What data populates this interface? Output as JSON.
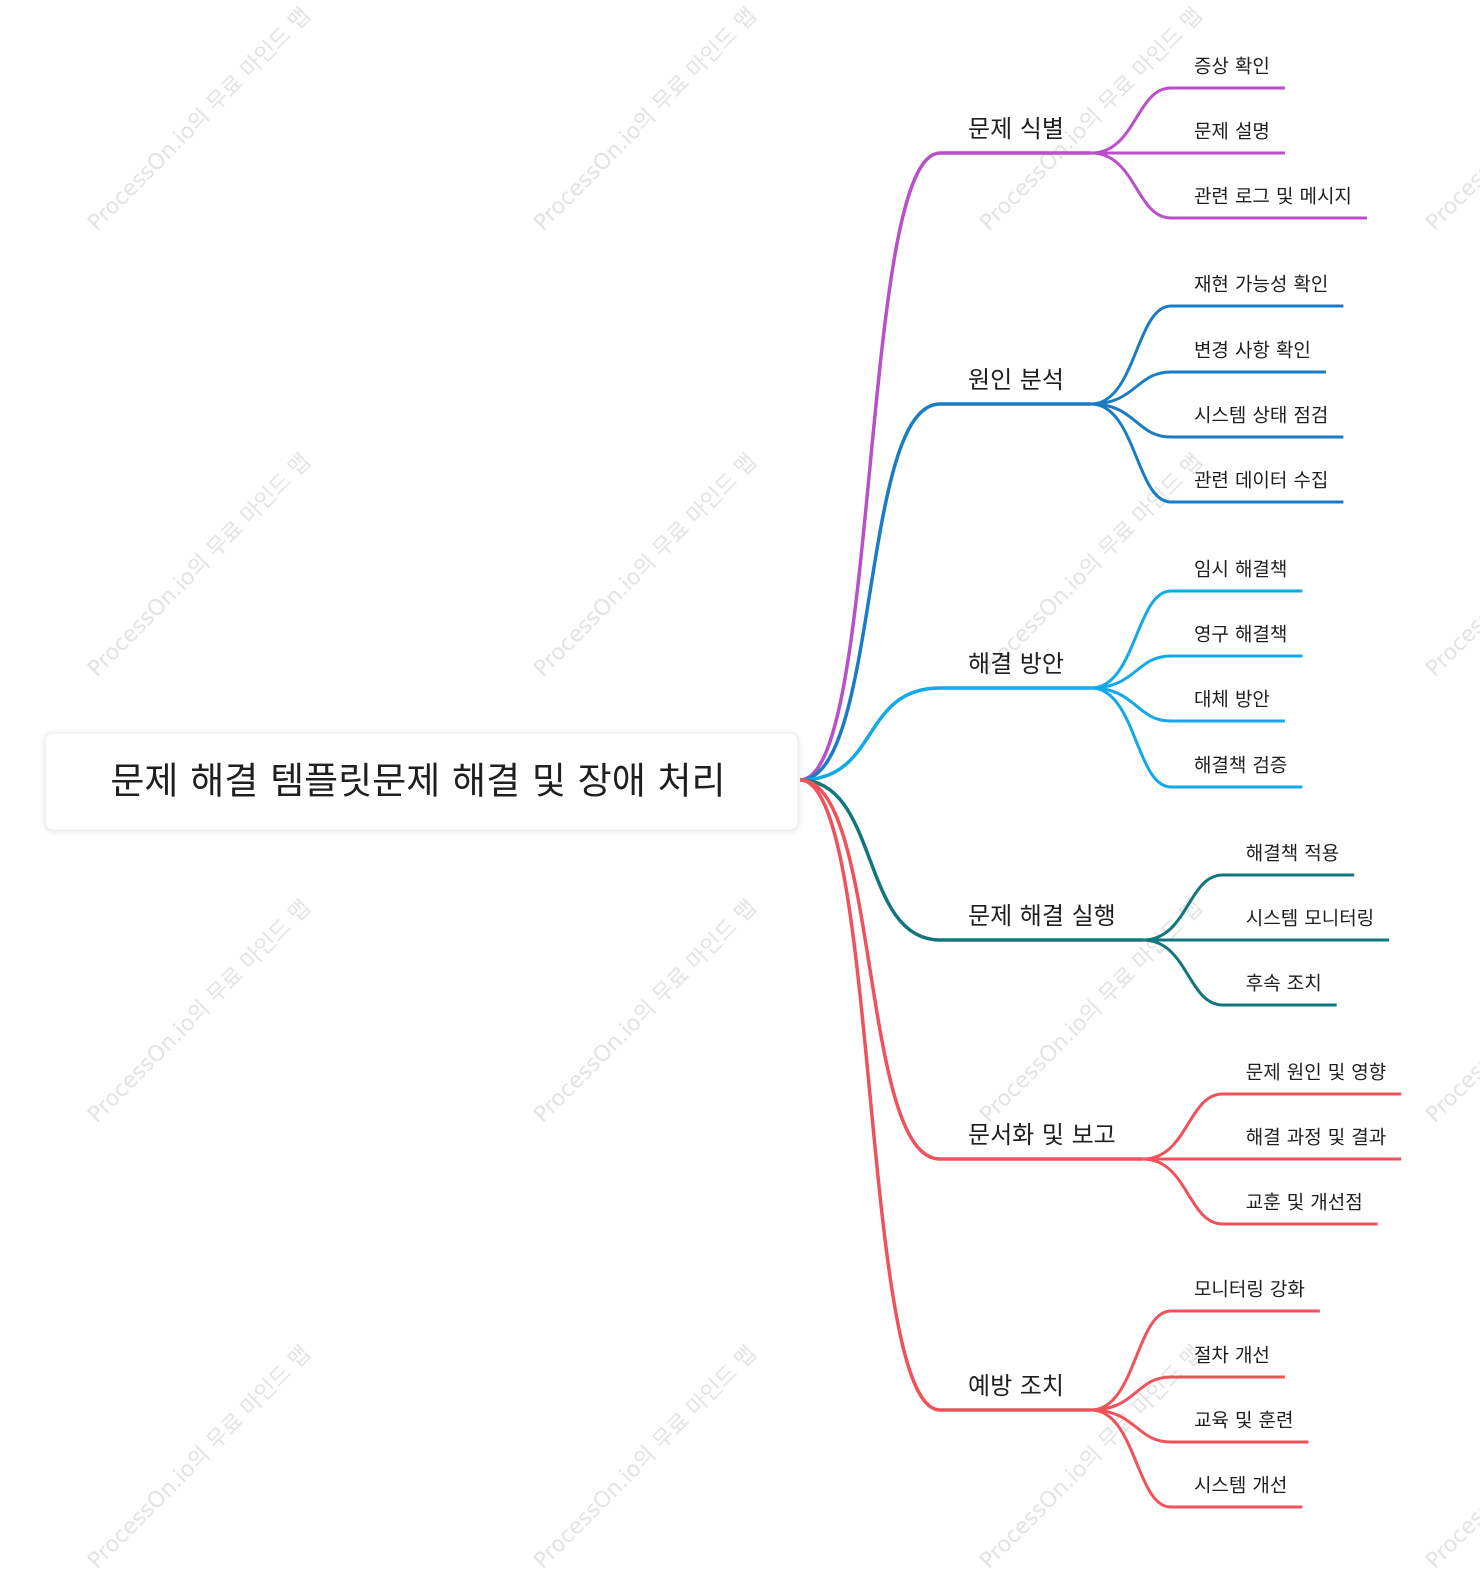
{
  "watermark": "ProcessOn.io의 무료 마인드 맵",
  "root": {
    "label": "문제 해결 템플릿문제 해결 및 장애 처리"
  },
  "branches": [
    {
      "label": "문제 식별",
      "color": "#b94fc9",
      "children": [
        "증상 확인",
        "문제 설명",
        "관련 로그 및 메시지"
      ]
    },
    {
      "label": "원인 분석",
      "color": "#1a7cc4",
      "children": [
        "재현 가능성 확인",
        "변경 사항 확인",
        "시스템 상태 점검",
        "관련 데이터 수집"
      ]
    },
    {
      "label": "해결 방안",
      "color": "#12a9e8",
      "children": [
        "임시 해결책",
        "영구 해결책",
        "대체 방안",
        "해결책 검증"
      ]
    },
    {
      "label": "문제 해결 실행",
      "color": "#11777c",
      "children": [
        "해결책 적용",
        "시스템 모니터링",
        "후속 조치"
      ]
    },
    {
      "label": "문서화 및 보고",
      "color": "#f0525b",
      "children": [
        "문제 원인 및 영향",
        "해결 과정 및 결과",
        "교훈 및 개선점"
      ]
    },
    {
      "label": "예방 조치",
      "color": "#f0525b",
      "children": [
        "모니터링 강화",
        "절차 개선",
        "교육 및 훈련",
        "시스템 개선"
      ]
    }
  ]
}
